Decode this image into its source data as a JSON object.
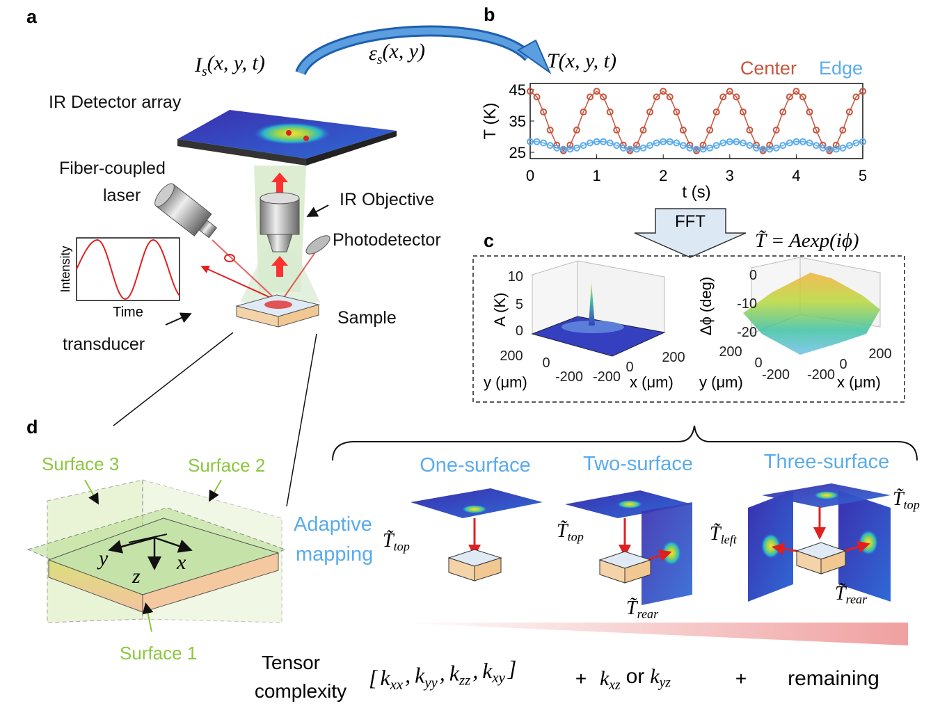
{
  "panel_labels": [
    "a",
    "b",
    "c",
    "d"
  ],
  "panel_a": {
    "input": [
      "I",
      "s",
      "(x, y, t)"
    ],
    "transform": [
      "ε",
      "s",
      "(x, y)"
    ],
    "output": "T(x, y, t)",
    "detector": "IR Detector array",
    "laser": [
      "Fiber-coupled",
      "laser"
    ],
    "objective": "IR Objective",
    "photodetector": "Photodetector",
    "sample": "Sample",
    "transducer": "transducer",
    "inset_ylabel": "Intensity",
    "inset_xlabel": "Time"
  },
  "chart_data": {
    "type": "line",
    "xlabel": "t (s)",
    "ylabel": "T (K)",
    "x": [
      0,
      0.1,
      0.2,
      0.3,
      0.4,
      0.5,
      0.6,
      0.7,
      0.8,
      0.9,
      1,
      1.1,
      1.2,
      1.3,
      1.4,
      1.5,
      1.6,
      1.7,
      1.8,
      1.9,
      2,
      2.1,
      2.2,
      2.3,
      2.4,
      2.5,
      2.6,
      2.7,
      2.8,
      2.9,
      3,
      3.1,
      3.2,
      3.3,
      3.4,
      3.5,
      3.6,
      3.7,
      3.8,
      3.9,
      4,
      4.1,
      4.2,
      4.3,
      4.4,
      4.5,
      4.6,
      4.7,
      4.8,
      4.9,
      5
    ],
    "series": [
      {
        "name": "Center",
        "color": "#c8553d",
        "values": [
          44.5,
          42.7,
          37.9,
          32.1,
          27.3,
          25.5,
          27.3,
          32.1,
          37.9,
          42.7,
          44.5,
          42.7,
          37.9,
          32.1,
          27.3,
          25.5,
          27.3,
          32.1,
          37.9,
          42.7,
          44.5,
          42.7,
          37.9,
          32.1,
          27.3,
          25.5,
          27.3,
          32.1,
          37.9,
          42.7,
          44.5,
          42.7,
          37.9,
          32.1,
          27.3,
          25.5,
          27.3,
          32.1,
          37.9,
          42.7,
          44.5,
          42.7,
          37.9,
          32.1,
          27.3,
          25.5,
          27.3,
          32.1,
          37.9,
          42.7,
          44.5
        ]
      },
      {
        "name": "Edge",
        "color": "#5aabee",
        "values": [
          28.4,
          28.4,
          28.0,
          27.2,
          26.4,
          26.0,
          26.0,
          26.4,
          27.2,
          28.0,
          28.4,
          28.4,
          28.0,
          27.2,
          26.4,
          26.0,
          26.0,
          26.4,
          27.2,
          28.0,
          28.4,
          28.4,
          28.0,
          27.2,
          26.4,
          26.0,
          26.0,
          26.4,
          27.2,
          28.0,
          28.4,
          28.4,
          28.0,
          27.2,
          26.4,
          26.0,
          26.0,
          26.4,
          27.2,
          28.0,
          28.4,
          28.4,
          28.0,
          27.2,
          26.4,
          26.0,
          26.0,
          26.4,
          27.2,
          28.0,
          28.4
        ]
      }
    ],
    "xlim": [
      0,
      5
    ],
    "xticks": [
      0,
      1,
      2,
      3,
      4,
      5
    ],
    "ylim": [
      23,
      47
    ],
    "yticks": [
      25,
      35,
      45
    ],
    "legend": "top-right"
  },
  "fft": {
    "label": "FFT",
    "equation": "T̃ = Aexp(iϕ)"
  },
  "panel_c": {
    "left": {
      "zlabel": "A (K)",
      "zticks": [
        10,
        5,
        0
      ],
      "yticks": [
        200,
        0,
        -200
      ],
      "xticks": [
        -200,
        0,
        200
      ],
      "ylabel": "y (μm)",
      "xlabel": "x (μm)"
    },
    "right": {
      "zlabel": "Δϕ (deg)",
      "zticks": [
        0,
        -10,
        -20
      ],
      "yticks": [
        200,
        0,
        -200
      ],
      "xticks": [
        -200,
        0,
        200
      ],
      "ylabel": "y (μm)",
      "xlabel": "x (μm)"
    }
  },
  "panel_d": {
    "surfaces": [
      "Surface 3",
      "Surface 2",
      "Surface 1"
    ],
    "axes": [
      "y",
      "z",
      "x"
    ],
    "adaptive": [
      "Adaptive",
      "mapping"
    ],
    "modes": [
      "One-surface",
      "Two-surface",
      "Three-surface"
    ],
    "t_one_top": [
      "T̃",
      "top"
    ],
    "t_two_top": [
      "T̃",
      "top"
    ],
    "t_two_rear": [
      "T̃",
      "rear"
    ],
    "t_three_left": [
      "T̃",
      "left"
    ],
    "t_three_top": [
      "T̃",
      "top"
    ],
    "t_three_rear": [
      "T̃",
      "rear"
    ]
  },
  "tensor": {
    "label": [
      "Tensor",
      "complexity"
    ],
    "open": "[",
    "close": "]",
    "sep": ",",
    "first": [
      [
        "k",
        "xx"
      ],
      [
        "k",
        "yy"
      ],
      [
        "k",
        "zz"
      ],
      [
        "k",
        "xy"
      ]
    ],
    "plus": "+",
    "or": "or",
    "second": [
      [
        "k",
        "xz"
      ],
      [
        "k",
        "yz"
      ]
    ],
    "remaining": "remaining"
  }
}
